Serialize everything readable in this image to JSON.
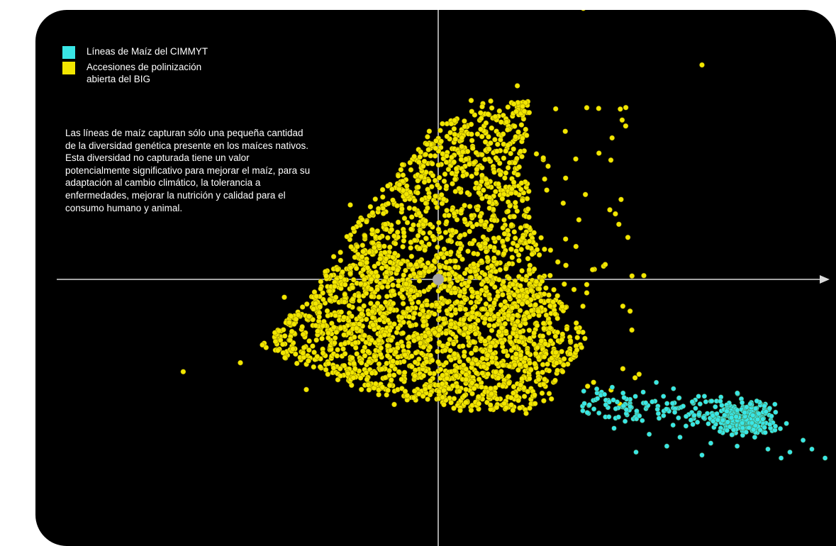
{
  "chart_data": {
    "type": "scatter",
    "title": "",
    "xlabel": "",
    "ylabel": "",
    "grid": false,
    "legend_position": "top-left",
    "xlim": [
      -1.0,
      1.0
    ],
    "ylim": [
      -1.0,
      1.0
    ],
    "origin_marker": {
      "x": 0,
      "y": 0,
      "color": "#a6a6a6"
    },
    "series": [
      {
        "name": "Accesiones de polinización abierta del BIG",
        "color": "#f2e600",
        "description_points": [
          [
            -0.45,
            -0.28
          ],
          [
            -0.3,
            -0.37
          ],
          [
            -0.1,
            -0.42
          ],
          [
            0.05,
            -0.44
          ],
          [
            0.2,
            -0.45
          ],
          [
            -0.4,
            -0.22
          ],
          [
            -0.25,
            -0.18
          ],
          [
            -0.1,
            -0.15
          ],
          [
            0.05,
            -0.1
          ],
          [
            0.18,
            -0.12
          ],
          [
            -0.35,
            -0.06
          ],
          [
            -0.2,
            0.02
          ],
          [
            -0.05,
            0.05
          ],
          [
            0.05,
            0.12
          ],
          [
            0.15,
            0.2
          ],
          [
            -0.2,
            0.25
          ],
          [
            -0.08,
            0.35
          ],
          [
            0.02,
            0.48
          ],
          [
            0.1,
            0.58
          ],
          [
            0.18,
            0.65
          ],
          [
            0.25,
            0.38
          ],
          [
            0.32,
            0.2
          ],
          [
            0.38,
            0.05
          ],
          [
            0.3,
            -0.25
          ],
          [
            0.42,
            -0.3
          ],
          [
            -0.58,
            -0.31
          ],
          [
            0.6,
            0.72
          ],
          [
            0.43,
            0.94
          ],
          [
            0.33,
            0.91
          ],
          [
            0.42,
            -0.09
          ]
        ]
      },
      {
        "name": "Líneas de Maíz del CIMMYT",
        "color": "#39e6e6",
        "description_points": [
          [
            0.4,
            -0.5
          ],
          [
            0.48,
            -0.52
          ],
          [
            0.55,
            -0.53
          ],
          [
            0.62,
            -0.55
          ],
          [
            0.68,
            -0.56
          ],
          [
            0.75,
            -0.57
          ],
          [
            0.8,
            -0.58
          ],
          [
            0.85,
            -0.57
          ],
          [
            0.88,
            -0.6
          ],
          [
            0.83,
            -0.54
          ],
          [
            0.78,
            -0.6
          ],
          [
            0.72,
            -0.53
          ],
          [
            0.52,
            -0.56
          ],
          [
            0.45,
            -0.58
          ],
          [
            0.6,
            -0.59
          ]
        ]
      }
    ],
    "annotation": "Las líneas de maíz capturan sólo una pequeña cantidad de la diversidad genética presente en los maíces nativos. Esta diversidad no capturada tiene un valor potencialmente significativo para mejorar el maíz, para su adaptación al cambio climático, la tolerancia a enfermedades, mejorar la nutrición y calidad para el consumo humano y animal."
  },
  "legend": {
    "items": [
      {
        "label": "Líneas de Maíz del CIMMYT",
        "color": "#39e6e6"
      },
      {
        "label": "Accesiones de polinización abierta del BIG",
        "color": "#f2e600"
      }
    ]
  },
  "close_glyph": "×"
}
